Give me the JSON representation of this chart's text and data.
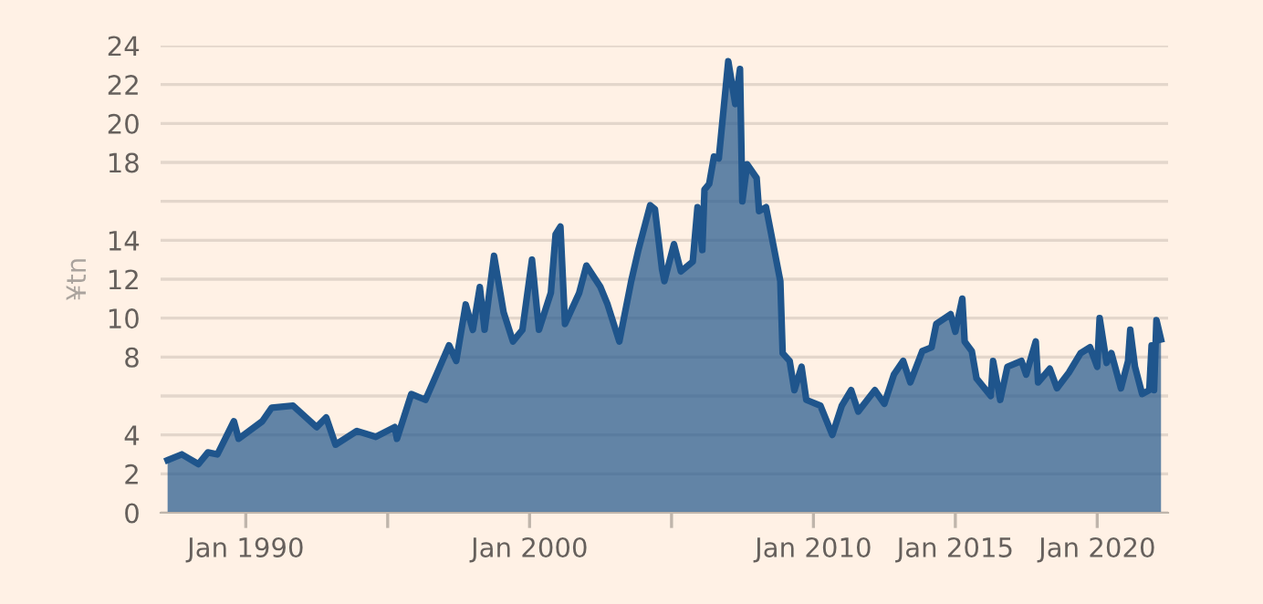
{
  "chart_data": {
    "type": "area",
    "ylabel": "¥tn",
    "grid": "y",
    "legend": false,
    "xlim": [
      "1987-01",
      "2022-07"
    ],
    "xticks": [
      {
        "value": "1990-01",
        "label": "Jan 1990"
      },
      {
        "value": "1995-01",
        "label": null
      },
      {
        "value": "2000-01",
        "label": "Jan 2000"
      },
      {
        "value": "2005-01",
        "label": null
      },
      {
        "value": "2010-01",
        "label": "Jan 2010"
      },
      {
        "value": "2015-01",
        "label": "Jan 2015"
      },
      {
        "value": "2020-01",
        "label": "Jan 2020"
      }
    ],
    "ylim": [
      0,
      24
    ],
    "yticks": [
      0,
      2,
      4,
      {
        "value": 6,
        "label": null
      },
      8,
      10,
      12,
      14,
      {
        "value": 16,
        "label": null
      },
      18,
      20,
      22,
      24
    ],
    "series": [
      {
        "color": "#1f558c",
        "x": [
          "1987-04",
          "1987-10",
          "1988-05",
          "1988-09",
          "1989-01",
          "1989-08",
          "1989-10",
          "1990-08",
          "1990-12",
          "1991-09",
          "1992-07",
          "1992-11",
          "1993-03",
          "1993-12",
          "1994-08",
          "1995-04",
          "1995-05",
          "1995-11",
          "1996-05",
          "1996-10",
          "1997-03",
          "1997-06",
          "1997-10",
          "1998-01",
          "1998-04",
          "1998-06",
          "1998-10",
          "1999-02",
          "1999-06",
          "1999-10",
          "2000-02",
          "2000-05",
          "2000-10",
          "2000-12",
          "2001-02",
          "2001-04",
          "2001-10",
          "2002-01",
          "2002-07",
          "2002-10",
          "2003-03",
          "2003-08",
          "2003-11",
          "2004-04",
          "2004-06",
          "2004-09",
          "2004-10",
          "2005-02",
          "2005-05",
          "2005-10",
          "2005-12",
          "2006-02",
          "2006-03",
          "2006-05",
          "2006-07",
          "2006-09",
          "2007-01",
          "2007-04",
          "2007-06",
          "2007-07",
          "2007-09",
          "2008-01",
          "2008-02",
          "2008-05",
          "2008-08",
          "2008-11",
          "2008-12",
          "2009-03",
          "2009-05",
          "2009-08",
          "2009-10",
          "2010-04",
          "2010-09",
          "2011-01",
          "2011-05",
          "2011-08",
          "2012-03",
          "2012-07",
          "2012-11",
          "2013-03",
          "2013-06",
          "2013-11",
          "2014-03",
          "2014-05",
          "2014-11",
          "2015-01",
          "2015-04",
          "2015-05",
          "2015-08",
          "2015-10",
          "2016-04",
          "2016-05",
          "2016-08",
          "2016-11",
          "2017-05",
          "2017-07",
          "2017-11",
          "2017-12",
          "2018-05",
          "2018-08",
          "2019-01",
          "2019-06",
          "2019-10",
          "2020-01",
          "2020-02",
          "2020-05",
          "2020-07",
          "2020-11",
          "2021-02",
          "2021-03",
          "2021-05",
          "2021-08",
          "2021-11",
          "2021-12",
          "2022-01",
          "2022-02",
          "2022-04"
        ],
        "values": [
          2.7,
          3.0,
          2.5,
          3.1,
          3.0,
          4.7,
          3.8,
          4.7,
          5.4,
          5.5,
          4.4,
          4.9,
          3.5,
          4.2,
          3.9,
          4.4,
          3.8,
          6.1,
          5.8,
          7.2,
          8.6,
          7.8,
          10.7,
          9.4,
          11.6,
          9.4,
          13.2,
          10.3,
          8.8,
          9.4,
          13.0,
          9.4,
          11.3,
          14.3,
          14.7,
          9.7,
          11.3,
          12.7,
          11.6,
          10.7,
          8.8,
          11.9,
          13.5,
          15.8,
          15.6,
          12.5,
          11.9,
          13.8,
          12.4,
          12.9,
          15.7,
          13.5,
          16.6,
          16.9,
          18.3,
          18.2,
          23.2,
          21.0,
          22.8,
          16.0,
          17.9,
          17.2,
          15.5,
          15.7,
          13.8,
          11.9,
          8.2,
          7.8,
          6.3,
          7.5,
          5.8,
          5.5,
          4.0,
          5.5,
          6.3,
          5.2,
          6.3,
          5.6,
          7.1,
          7.8,
          6.7,
          8.3,
          8.5,
          9.7,
          10.2,
          9.3,
          11.0,
          8.8,
          8.3,
          6.9,
          6.0,
          7.8,
          5.8,
          7.5,
          7.8,
          7.1,
          8.8,
          6.7,
          7.4,
          6.4,
          7.2,
          8.2,
          8.5,
          7.5,
          10.0,
          7.7,
          8.2,
          6.4,
          7.8,
          9.4,
          7.5,
          6.1,
          6.3,
          8.6,
          6.3,
          9.9,
          8.9
        ]
      }
    ]
  }
}
